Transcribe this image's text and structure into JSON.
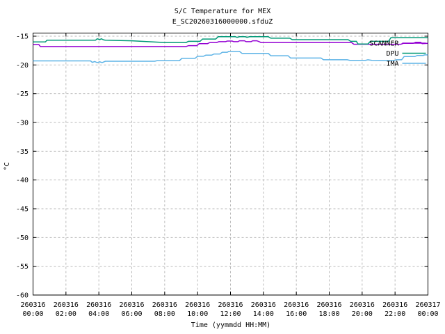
{
  "colors": {
    "background": "#ffffff",
    "border": "#000000",
    "grid": "#b9b9b9",
    "text": "#000000"
  },
  "chart_data": {
    "type": "line",
    "title": "S/C Temperature for MEX",
    "subtitle": "E_SC20260316000000.sfduZ",
    "xlabel": "Time (yymmdd HH:MM)",
    "ylabel": "°C",
    "xlim_hours": [
      0,
      24
    ],
    "ylim": [
      -60,
      -14.5
    ],
    "grid": "dashed, both axes",
    "legend_position": "top-right-inside",
    "x_ticks": [
      {
        "hour": 0,
        "date": "260316",
        "time": "00:00"
      },
      {
        "hour": 2,
        "date": "260316",
        "time": "02:00"
      },
      {
        "hour": 4,
        "date": "260316",
        "time": "04:00"
      },
      {
        "hour": 6,
        "date": "260316",
        "time": "06:00"
      },
      {
        "hour": 8,
        "date": "260316",
        "time": "08:00"
      },
      {
        "hour": 10,
        "date": "260316",
        "time": "10:00"
      },
      {
        "hour": 12,
        "date": "260316",
        "time": "12:00"
      },
      {
        "hour": 14,
        "date": "260316",
        "time": "14:00"
      },
      {
        "hour": 16,
        "date": "260316",
        "time": "16:00"
      },
      {
        "hour": 18,
        "date": "260316",
        "time": "18:00"
      },
      {
        "hour": 20,
        "date": "260316",
        "time": "20:00"
      },
      {
        "hour": 22,
        "date": "260316",
        "time": "22:00"
      },
      {
        "hour": 24,
        "date": "260317",
        "time": "00:00"
      }
    ],
    "y_ticks": [
      -15,
      -20,
      -25,
      -30,
      -35,
      -40,
      -45,
      -50,
      -55,
      -60
    ],
    "series": [
      {
        "name": "SCANNER",
        "color": "#9400d3",
        "points_hour_degC": [
          [
            0,
            -16.45
          ],
          [
            0.35,
            -16.45
          ],
          [
            0.45,
            -16.8
          ],
          [
            9.3,
            -16.8
          ],
          [
            9.45,
            -16.65
          ],
          [
            9.95,
            -16.65
          ],
          [
            10.1,
            -16.3
          ],
          [
            10.6,
            -16.3
          ],
          [
            10.75,
            -16.1
          ],
          [
            11.15,
            -16.1
          ],
          [
            11.3,
            -15.95
          ],
          [
            11.7,
            -15.95
          ],
          [
            11.8,
            -15.85
          ],
          [
            12.1,
            -15.85
          ],
          [
            12.2,
            -15.95
          ],
          [
            12.45,
            -15.95
          ],
          [
            12.55,
            -15.8
          ],
          [
            12.85,
            -15.8
          ],
          [
            12.95,
            -15.95
          ],
          [
            13.25,
            -15.95
          ],
          [
            13.35,
            -15.8
          ],
          [
            13.6,
            -15.8
          ],
          [
            13.75,
            -15.95
          ],
          [
            13.85,
            -16.1
          ],
          [
            19.35,
            -16.1
          ],
          [
            19.5,
            -16.4
          ],
          [
            22.35,
            -16.4
          ],
          [
            22.5,
            -16.25
          ],
          [
            23.1,
            -16.25
          ],
          [
            23.25,
            -16.05
          ],
          [
            23.55,
            -16.05
          ],
          [
            23.65,
            -16.3
          ],
          [
            24,
            -16.25
          ]
        ]
      },
      {
        "name": "DPU",
        "color": "#009977",
        "points_hour_degC": [
          [
            0,
            -16.0
          ],
          [
            0.75,
            -16.0
          ],
          [
            0.85,
            -15.7
          ],
          [
            3.8,
            -15.7
          ],
          [
            3.9,
            -15.45
          ],
          [
            4.05,
            -15.6
          ],
          [
            4.15,
            -15.45
          ],
          [
            4.3,
            -15.65
          ],
          [
            4.4,
            -15.7
          ],
          [
            6.0,
            -15.8
          ],
          [
            7.0,
            -15.95
          ],
          [
            8.0,
            -16.1
          ],
          [
            9.3,
            -16.1
          ],
          [
            9.45,
            -15.9
          ],
          [
            10.15,
            -15.9
          ],
          [
            10.3,
            -15.5
          ],
          [
            11.1,
            -15.5
          ],
          [
            11.25,
            -15.1
          ],
          [
            12.3,
            -15.1
          ],
          [
            12.4,
            -15.2
          ],
          [
            12.55,
            -15.1
          ],
          [
            12.9,
            -15.1
          ],
          [
            13.0,
            -15.2
          ],
          [
            13.15,
            -15.1
          ],
          [
            14.3,
            -15.1
          ],
          [
            14.45,
            -15.35
          ],
          [
            15.6,
            -15.35
          ],
          [
            15.75,
            -15.6
          ],
          [
            19.15,
            -15.6
          ],
          [
            19.3,
            -15.9
          ],
          [
            19.65,
            -15.9
          ],
          [
            19.75,
            -16.35
          ],
          [
            20.35,
            -16.35
          ],
          [
            20.5,
            -15.9
          ],
          [
            21.6,
            -15.9
          ],
          [
            21.75,
            -15.25
          ],
          [
            24,
            -15.25
          ]
        ]
      },
      {
        "name": "IMA",
        "color": "#5db3e6",
        "points_hour_degC": [
          [
            0,
            -19.3
          ],
          [
            3.5,
            -19.3
          ],
          [
            3.6,
            -19.55
          ],
          [
            3.75,
            -19.4
          ],
          [
            3.9,
            -19.6
          ],
          [
            4.05,
            -19.45
          ],
          [
            4.2,
            -19.6
          ],
          [
            4.4,
            -19.35
          ],
          [
            7.4,
            -19.35
          ],
          [
            7.55,
            -19.25
          ],
          [
            8.9,
            -19.25
          ],
          [
            9.05,
            -18.85
          ],
          [
            9.85,
            -18.85
          ],
          [
            10.0,
            -18.5
          ],
          [
            10.35,
            -18.5
          ],
          [
            10.5,
            -18.3
          ],
          [
            10.85,
            -18.3
          ],
          [
            11.0,
            -18.1
          ],
          [
            11.35,
            -18.1
          ],
          [
            11.5,
            -17.8
          ],
          [
            11.8,
            -17.8
          ],
          [
            11.9,
            -17.65
          ],
          [
            12.55,
            -17.65
          ],
          [
            12.7,
            -18.0
          ],
          [
            14.3,
            -18.0
          ],
          [
            14.45,
            -18.4
          ],
          [
            15.5,
            -18.4
          ],
          [
            15.65,
            -18.8
          ],
          [
            17.5,
            -18.8
          ],
          [
            17.65,
            -19.1
          ],
          [
            19.1,
            -19.1
          ],
          [
            19.25,
            -19.2
          ],
          [
            20.2,
            -19.2
          ],
          [
            20.35,
            -19.1
          ],
          [
            20.6,
            -19.2
          ],
          [
            21.9,
            -19.25
          ],
          [
            22.1,
            -19.1
          ],
          [
            22.4,
            -19.1
          ],
          [
            22.55,
            -18.55
          ],
          [
            23.2,
            -18.55
          ],
          [
            23.35,
            -18.35
          ],
          [
            23.7,
            -18.35
          ],
          [
            23.8,
            -18.25
          ],
          [
            24,
            -18.25
          ]
        ]
      }
    ]
  }
}
